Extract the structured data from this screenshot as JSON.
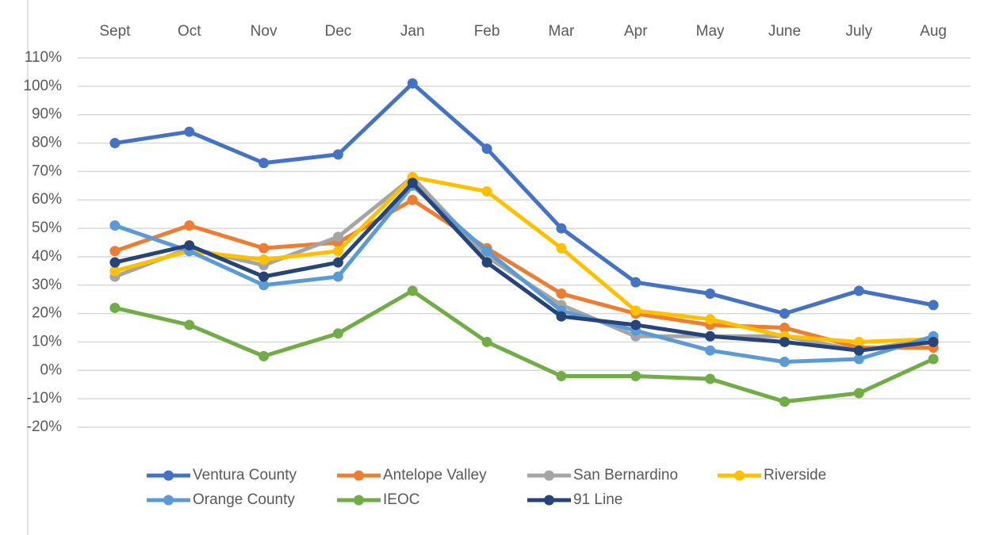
{
  "chart_data": {
    "type": "line",
    "categories": [
      "Sept",
      "Oct",
      "Nov",
      "Dec",
      "Jan",
      "Feb",
      "Mar",
      "Apr",
      "May",
      "June",
      "July",
      "Aug"
    ],
    "series": [
      {
        "name": "Ventura County",
        "color": "#4472c4",
        "values": [
          80,
          84,
          73,
          76,
          101,
          78,
          50,
          31,
          27,
          20,
          28,
          23
        ]
      },
      {
        "name": "Antelope Valley",
        "color": "#ed7d31",
        "values": [
          42,
          51,
          43,
          45,
          60,
          43,
          27,
          20,
          16,
          15,
          8,
          8
        ]
      },
      {
        "name": "San Bernardino",
        "color": "#a5a5a5",
        "values": [
          33,
          43,
          37,
          47,
          68,
          40,
          23,
          12,
          12,
          12,
          7,
          11
        ]
      },
      {
        "name": "Riverside",
        "color": "#ffc000",
        "values": [
          35,
          42,
          39,
          42,
          68,
          63,
          43,
          21,
          18,
          12,
          10,
          11
        ]
      },
      {
        "name": "Orange County",
        "color": "#5b9bd5",
        "values": [
          51,
          42,
          30,
          33,
          65,
          42,
          21,
          14,
          7,
          3,
          4,
          12
        ]
      },
      {
        "name": "IEOC",
        "color": "#70ad47",
        "values": [
          22,
          16,
          5,
          13,
          28,
          10,
          -2,
          -2,
          -3,
          -11,
          -8,
          4
        ]
      },
      {
        "name": "91 Line",
        "color": "#264478",
        "values": [
          38,
          44,
          33,
          38,
          66,
          38,
          19,
          16,
          12,
          10,
          7,
          10
        ]
      }
    ],
    "ylim": [
      -20,
      110
    ],
    "yticks": [
      {
        "value": 110,
        "label": "110%"
      },
      {
        "value": 100,
        "label": "100%"
      },
      {
        "value": 90,
        "label": "90%"
      },
      {
        "value": 80,
        "label": "80%"
      },
      {
        "value": 70,
        "label": "70%"
      },
      {
        "value": 60,
        "label": "60%"
      },
      {
        "value": 50,
        "label": "50%"
      },
      {
        "value": 40,
        "label": "40%"
      },
      {
        "value": 30,
        "label": "30%"
      },
      {
        "value": 20,
        "label": "20%"
      },
      {
        "value": 10,
        "label": "10%"
      },
      {
        "value": 0,
        "label": "0%"
      },
      {
        "value": -10,
        "label": "-10%"
      },
      {
        "value": -20,
        "label": "-20%"
      }
    ],
    "grid": true,
    "legend": "bottom"
  }
}
